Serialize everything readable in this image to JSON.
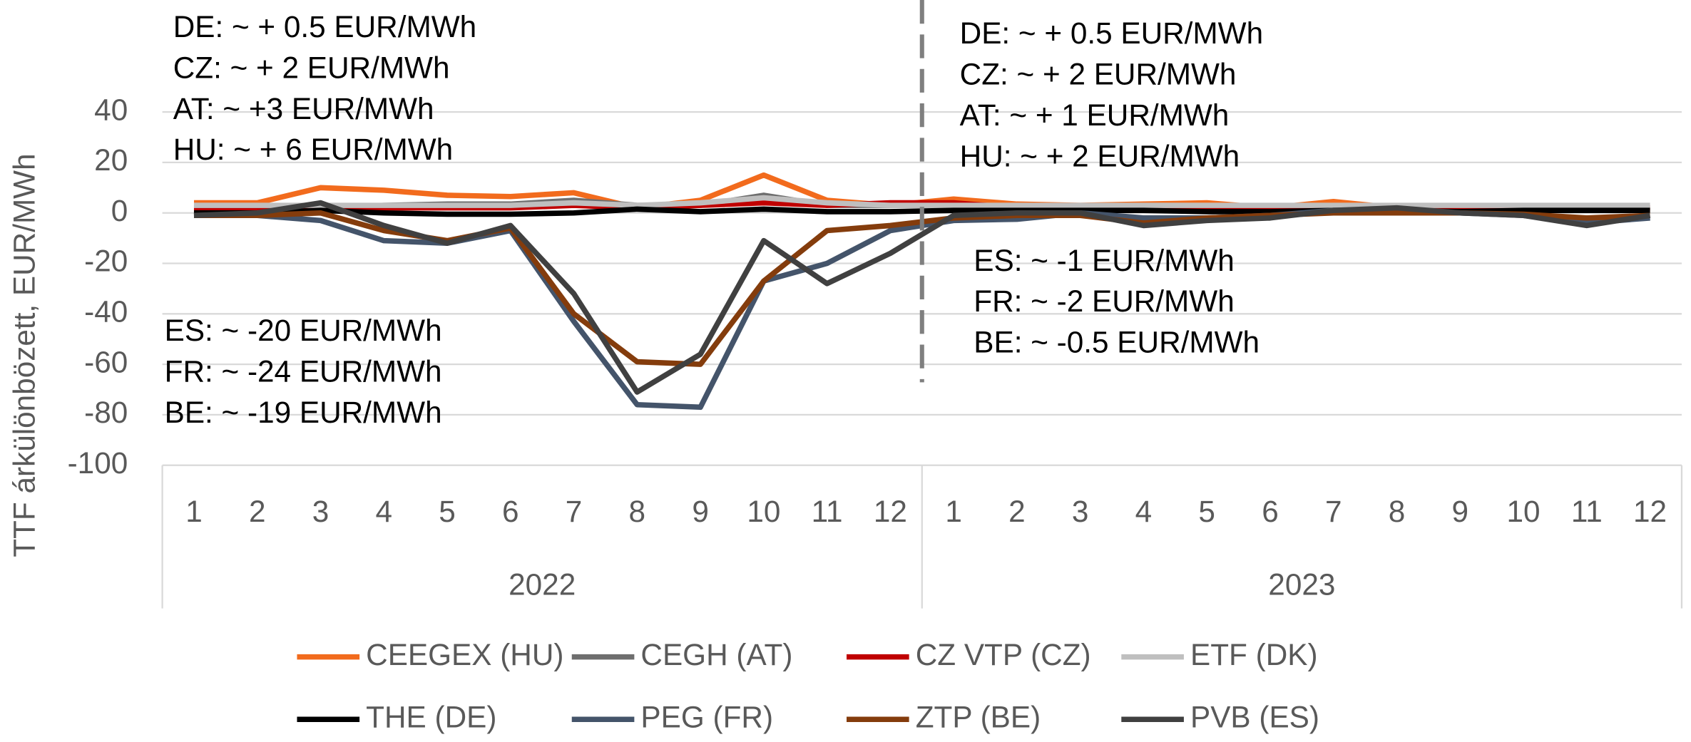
{
  "chart_data": {
    "type": "line",
    "y_label": "TTF árkülönbözett, EUR/MWh",
    "categories": [
      "1",
      "2",
      "3",
      "4",
      "5",
      "6",
      "7",
      "8",
      "9",
      "10",
      "11",
      "12",
      "1",
      "2",
      "3",
      "4",
      "5",
      "6",
      "7",
      "8",
      "9",
      "10",
      "11",
      "12"
    ],
    "groups": [
      "2022",
      "2023"
    ],
    "ylim": [
      -100,
      40
    ],
    "yticks": [
      -100,
      -80,
      -60,
      -40,
      -20,
      0,
      20,
      40
    ],
    "grid": true,
    "series": [
      {
        "name": "CEEGEX (HU)",
        "color": "#f26b1d",
        "values": [
          4,
          4,
          10,
          9,
          7,
          6.5,
          8,
          2,
          5,
          15,
          5,
          3,
          5.5,
          3.5,
          3,
          3.5,
          4,
          2,
          4.5,
          2,
          1.5,
          1.5,
          1,
          1
        ]
      },
      {
        "name": "CEGH (AT)",
        "color": "#6e6e6e",
        "values": [
          2,
          2,
          2,
          3,
          3.5,
          3.5,
          5,
          3,
          3,
          7,
          3,
          3,
          3,
          2,
          2,
          2,
          2,
          2,
          2,
          2,
          2,
          2,
          2,
          2
        ]
      },
      {
        "name": "CZ VTP (CZ)",
        "color": "#c00000",
        "values": [
          1,
          1,
          2,
          2,
          2,
          2,
          3,
          2,
          3,
          4,
          3,
          4,
          4,
          2,
          2,
          2,
          2,
          1.5,
          2,
          2,
          2,
          2,
          2,
          2
        ]
      },
      {
        "name": "ETF (DK)",
        "color": "#bfbfbf",
        "values": [
          3,
          3,
          3,
          3,
          3,
          3,
          4,
          3,
          4,
          6,
          4,
          3,
          3,
          3,
          3,
          3,
          3,
          3,
          3,
          3,
          3,
          3,
          3,
          3
        ]
      },
      {
        "name": "THE (DE)",
        "color": "#000000",
        "values": [
          0,
          0,
          1,
          0,
          -0.5,
          -0.5,
          0,
          1.5,
          0.5,
          1.5,
          0.5,
          0.5,
          1,
          1,
          1,
          1,
          0.5,
          0.5,
          1,
          1,
          0.5,
          1,
          1,
          1
        ]
      },
      {
        "name": "PEG  (FR)",
        "color": "#44546a",
        "values": [
          -1,
          -1,
          -3,
          -11,
          -12,
          -7,
          -43,
          -76,
          -77,
          -27,
          -20,
          -7,
          -3,
          -2.5,
          0,
          -2,
          -2,
          -1,
          1,
          1,
          0,
          -1,
          -4,
          -2
        ]
      },
      {
        "name": "ZTP (BE)",
        "color": "#843c0c",
        "values": [
          -1,
          -1,
          0,
          -7,
          -11,
          -6,
          -40,
          -59,
          -60,
          -27,
          -7,
          -5,
          -2,
          -1,
          -1,
          -4,
          -2,
          -1,
          0,
          0,
          0,
          -0.5,
          -2,
          -1
        ]
      },
      {
        "name": "PVB (ES)",
        "color": "#404040",
        "values": [
          -1,
          0,
          4,
          -5,
          -12,
          -5,
          -32,
          -71,
          -56,
          -11,
          -28,
          -16,
          -1,
          0,
          0,
          -5,
          -3,
          -2,
          1,
          2,
          0,
          -1,
          -5,
          -1
        ]
      }
    ],
    "annotations": [
      [
        "DE: ~ + 0.5 EUR/MWh",
        "CZ: ~ + 2 EUR/MWh",
        "AT: ~ +3 EUR/MWh",
        "HU: ~ + 6 EUR/MWh"
      ],
      [
        "DE: ~ + 0.5 EUR/MWh",
        "CZ: ~ + 2 EUR/MWh",
        "AT: ~ + 1 EUR/MWh",
        "HU: ~ + 2 EUR/MWh"
      ],
      [
        "ES: ~ -20 EUR/MWh",
        "FR: ~ -24 EUR/MWh",
        "BE: ~ -19 EUR/MWh"
      ],
      [
        "ES: ~ -1 EUR/MWh",
        "FR: ~ -2 EUR/MWh",
        "BE: ~ -0.5 EUR/MWh"
      ]
    ]
  }
}
